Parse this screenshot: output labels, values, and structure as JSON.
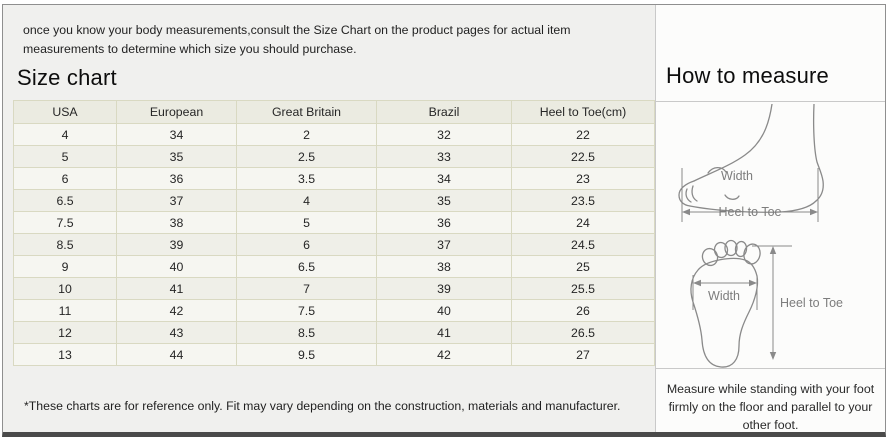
{
  "intro": {
    "text": "once you know your body measurements,consult the Size Chart on the product pages for actual item measurements to determine which size you should purchase."
  },
  "size_chart": {
    "title": "Size chart",
    "columns": [
      "USA",
      "European",
      "Great Britain",
      "Brazil",
      "Heel to Toe(cm)"
    ],
    "rows": [
      [
        "4",
        "34",
        "2",
        "32",
        "22"
      ],
      [
        "5",
        "35",
        "2.5",
        "33",
        "22.5"
      ],
      [
        "6",
        "36",
        "3.5",
        "34",
        "23"
      ],
      [
        "6.5",
        "37",
        "4",
        "35",
        "23.5"
      ],
      [
        "7.5",
        "38",
        "5",
        "36",
        "24"
      ],
      [
        "8.5",
        "39",
        "6",
        "37",
        "24.5"
      ],
      [
        "9",
        "40",
        "6.5",
        "38",
        "25"
      ],
      [
        "10",
        "41",
        "7",
        "39",
        "25.5"
      ],
      [
        "11",
        "42",
        "7.5",
        "40",
        "26"
      ],
      [
        "12",
        "43",
        "8.5",
        "41",
        "26.5"
      ],
      [
        "13",
        "44",
        "9.5",
        "42",
        "27"
      ]
    ],
    "footnote": "*These charts are for reference only. Fit may vary depending on the construction, materials and manufacturer."
  },
  "how_to_measure": {
    "title": "How to measure",
    "side_view": {
      "width_label": "Width",
      "length_label": "Heel to Toe"
    },
    "top_view": {
      "width_label": "Width",
      "length_label": "Heel to Toe"
    },
    "caption": "Measure while standing with your foot firmly on the floor and parallel to your other foot."
  },
  "colors": {
    "page_bg": "#f0f0ee",
    "panel_bg": "#fcfcfb",
    "table_border": "#d9d9c2",
    "table_header_bg": "#ebebe1",
    "row_odd_bg": "#f6f6f1",
    "row_even_bg": "#efefe8",
    "frame_border": "#8f8f8f",
    "bottom_bar": "#4a4a4a",
    "diagram_line": "#8a8a8a",
    "diagram_label": "#7d7d7d"
  }
}
